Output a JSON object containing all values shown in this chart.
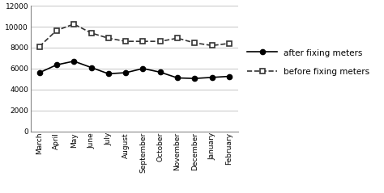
{
  "months": [
    "March",
    "April",
    "May",
    "June",
    "July",
    "August",
    "September",
    "October",
    "November",
    "December",
    "January",
    "February"
  ],
  "after_fixing": [
    5600,
    6350,
    6700,
    6100,
    5500,
    5600,
    6000,
    5650,
    5100,
    5050,
    5150,
    5250
  ],
  "before_fixing": [
    8100,
    9650,
    10250,
    9400,
    8900,
    8600,
    8600,
    8600,
    8900,
    8450,
    8200,
    8400
  ],
  "ylim": [
    0,
    12000
  ],
  "yticks": [
    0,
    2000,
    4000,
    6000,
    8000,
    10000,
    12000
  ],
  "after_label": "after fixing meters",
  "before_label": "before fixing meters",
  "after_color": "#000000",
  "before_color": "#333333",
  "bg_color": "#ffffff",
  "grid_color": "#bbbbbb"
}
